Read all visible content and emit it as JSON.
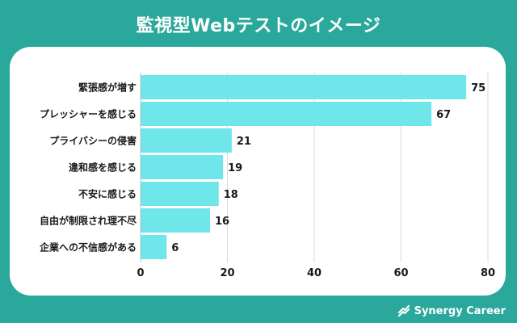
{
  "page": {
    "title": "監視型Webテストのイメージ",
    "brand": "Synergy Career"
  },
  "colors": {
    "background": "#2aa89b",
    "bar": "#6ee6ea",
    "grid": "#d9d9d9",
    "text": "#1a1a1a"
  },
  "chart_data": {
    "type": "bar",
    "orientation": "horizontal",
    "categories": [
      "緊張感が増す",
      "プレッシャーを感じる",
      "プライバシーの侵害",
      "違和感を感じる",
      "不安に感じる",
      "自由が制限され理不尽",
      "企業への不信感がある"
    ],
    "values": [
      75,
      67,
      21,
      19,
      18,
      16,
      6
    ],
    "xlim": [
      0,
      80
    ],
    "xticks": [
      0,
      20,
      40,
      60,
      80
    ],
    "grid": true,
    "legend": "none"
  }
}
